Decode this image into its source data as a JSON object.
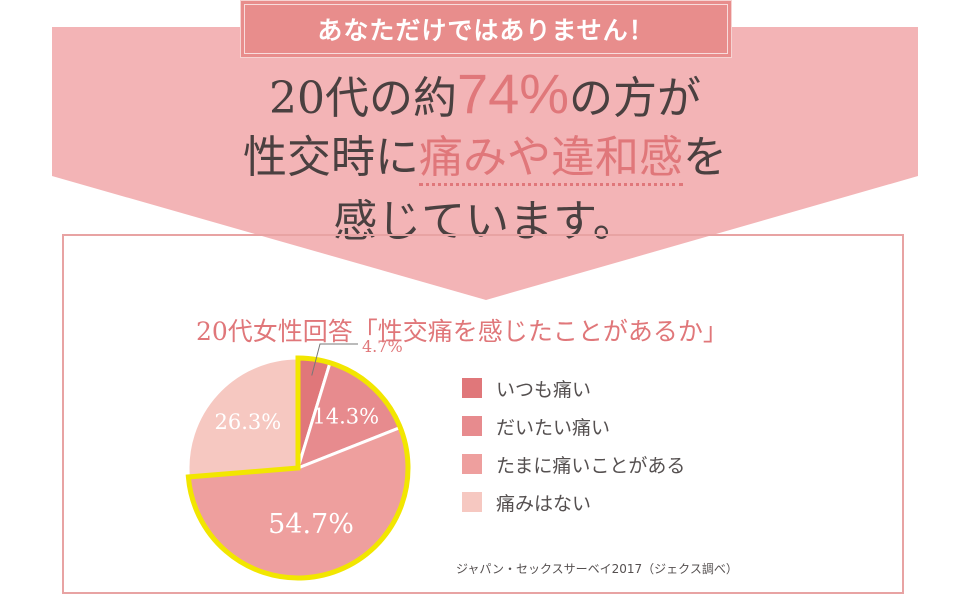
{
  "badge": "あなただけではありません！",
  "headline": {
    "line1_a": "20代の約",
    "line1_b": "74%",
    "line1_c": "の方が",
    "line2_a": "性交時に",
    "line2_b": "痛みや違和感",
    "line2_c": "を",
    "line3": "感じています。"
  },
  "colors": {
    "banner": "#f3b4b6",
    "accent": "#e0777a",
    "highlight_outline": "#f2e600",
    "slices": [
      "#e0777a",
      "#e78b8e",
      "#ee9f9e",
      "#f6c8c1"
    ]
  },
  "chart_data": {
    "type": "pie",
    "title": "20代女性回答「性交痛を感じたことがあるか」",
    "categories": [
      "いつも痛い",
      "だいたい痛い",
      "たまに痛いことがある",
      "痛みはない"
    ],
    "values": [
      4.7,
      14.3,
      54.7,
      26.3
    ],
    "labels": [
      "4.7%",
      "14.3%",
      "54.7%",
      "26.3%"
    ],
    "highlighted": [
      "いつも痛い",
      "だいたい痛い",
      "たまに痛いことがある"
    ],
    "legend_position": "right"
  },
  "source": "ジャパン・セックスサーベイ2017（ジェクス調べ）"
}
